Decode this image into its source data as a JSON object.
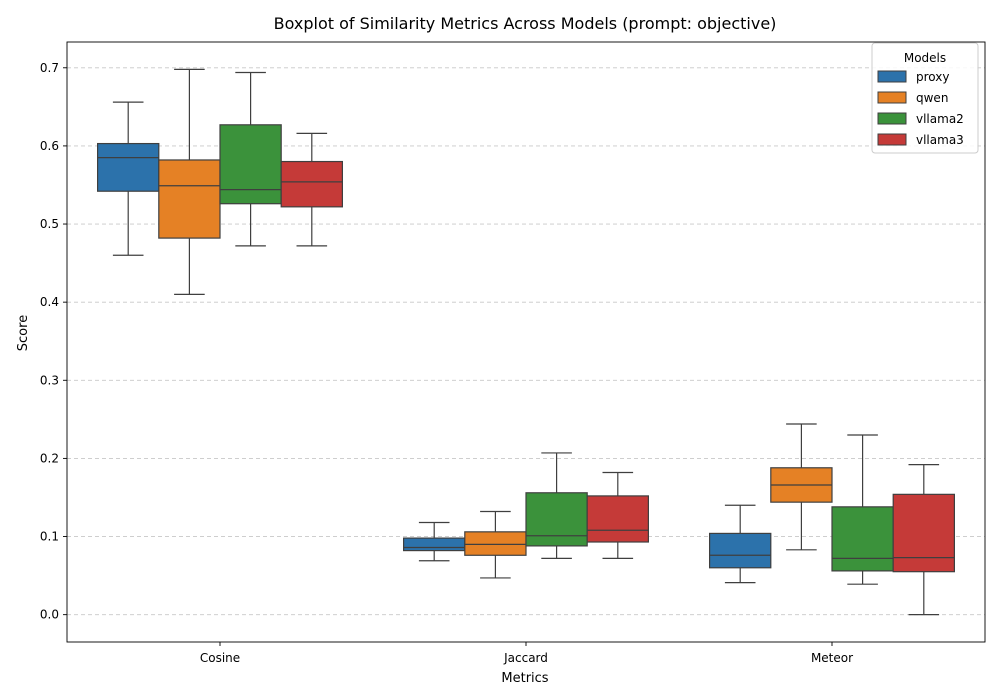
{
  "chart_data": {
    "type": "boxplot",
    "title": "Boxplot of Similarity Metrics Across Models (prompt: objective)",
    "xlabel": "Metrics",
    "ylabel": "Score",
    "ylim": [
      -0.035,
      0.733
    ],
    "yticks": [
      "0.0",
      "0.1",
      "0.2",
      "0.3",
      "0.4",
      "0.5",
      "0.6",
      "0.7"
    ],
    "ytick_values": [
      0.0,
      0.1,
      0.2,
      0.3,
      0.4,
      0.5,
      0.6,
      0.7
    ],
    "grid": "y-dashed",
    "categories": [
      "Cosine",
      "Jaccard",
      "Meteor"
    ],
    "legend": {
      "title": "Models",
      "placement": "top-right"
    },
    "series": [
      {
        "name": "proxy",
        "color": "#2c72ab",
        "boxes": [
          {
            "whislo": 0.46,
            "q1": 0.542,
            "med": 0.585,
            "q3": 0.603,
            "whishi": 0.656
          },
          {
            "whislo": 0.069,
            "q1": 0.082,
            "med": 0.086,
            "q3": 0.098,
            "whishi": 0.118
          },
          {
            "whislo": 0.041,
            "q1": 0.06,
            "med": 0.076,
            "q3": 0.104,
            "whishi": 0.14
          }
        ]
      },
      {
        "name": "qwen",
        "color": "#e58125",
        "boxes": [
          {
            "whislo": 0.41,
            "q1": 0.482,
            "med": 0.549,
            "q3": 0.582,
            "whishi": 0.698
          },
          {
            "whislo": 0.047,
            "q1": 0.076,
            "med": 0.09,
            "q3": 0.106,
            "whishi": 0.132
          },
          {
            "whislo": 0.083,
            "q1": 0.144,
            "med": 0.166,
            "q3": 0.188,
            "whishi": 0.244
          }
        ]
      },
      {
        "name": "vllama2",
        "color": "#3b923b",
        "boxes": [
          {
            "whislo": 0.472,
            "q1": 0.526,
            "med": 0.544,
            "q3": 0.627,
            "whishi": 0.694
          },
          {
            "whislo": 0.072,
            "q1": 0.088,
            "med": 0.101,
            "q3": 0.156,
            "whishi": 0.207
          },
          {
            "whislo": 0.039,
            "q1": 0.056,
            "med": 0.072,
            "q3": 0.138,
            "whishi": 0.23
          }
        ]
      },
      {
        "name": "vllama3",
        "color": "#c53a38",
        "boxes": [
          {
            "whislo": 0.472,
            "q1": 0.522,
            "med": 0.554,
            "q3": 0.58,
            "whishi": 0.616
          },
          {
            "whislo": 0.072,
            "q1": 0.093,
            "med": 0.108,
            "q3": 0.152,
            "whishi": 0.182
          },
          {
            "whislo": 0.0,
            "q1": 0.055,
            "med": 0.073,
            "q3": 0.154,
            "whishi": 0.192
          }
        ]
      }
    ]
  }
}
